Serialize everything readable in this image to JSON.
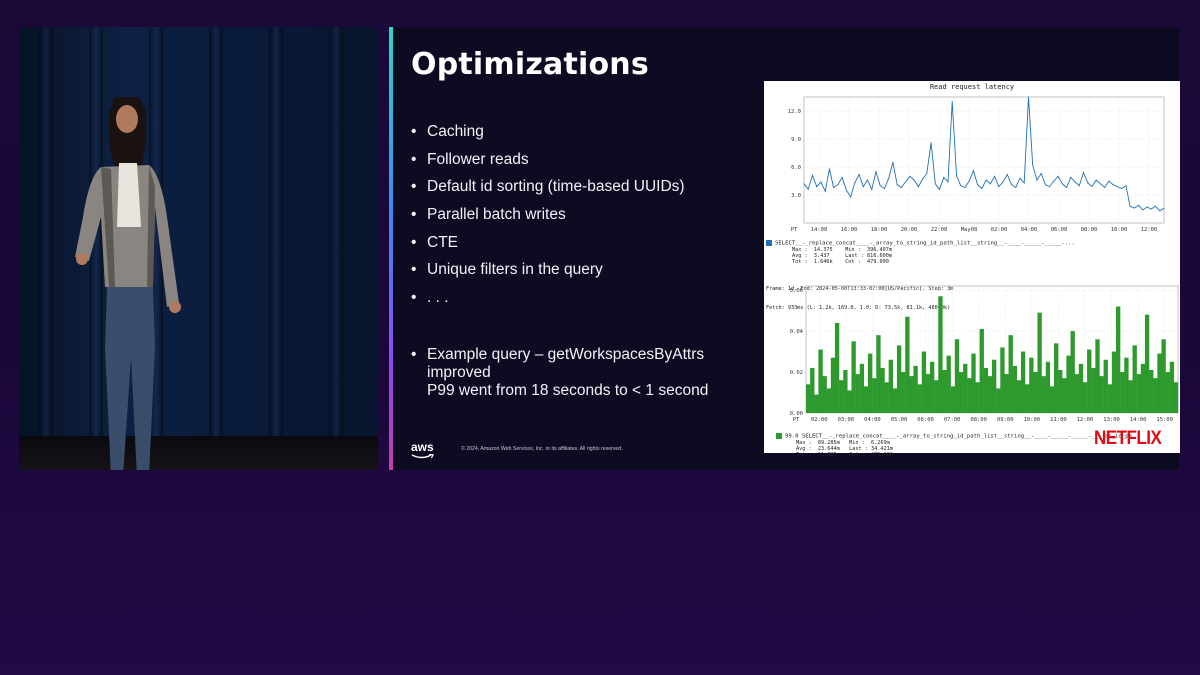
{
  "slide": {
    "title": "Optimizations",
    "bullets": [
      "Caching",
      "Follower reads",
      "Default id sorting (time-based UUIDs)",
      "Parallel batch writes",
      "CTE",
      "Unique filters in the query",
      ". . ."
    ],
    "example": {
      "line1": "Example query – getWorkspacesByAttrs",
      "line2": "improved",
      "line3": "P99 went from 18 seconds to < 1 second"
    },
    "footer": {
      "aws_logo": "aws",
      "copyright": "© 2024, Amazon Web Services, Inc. or its affiliates. All rights reserved."
    },
    "netflix_logo": "NETFLIX"
  },
  "chart_data": [
    {
      "type": "line",
      "title": "Read request latency",
      "x_ticks": [
        "PT",
        "14:00",
        "16:00",
        "18:00",
        "20:00",
        "22:00",
        "May08",
        "02:00",
        "04:00",
        "06:00",
        "08:00",
        "10:00",
        "12:00"
      ],
      "y_ticks": [
        "3.0",
        "6.0",
        "9.0",
        "12.0"
      ],
      "ylim": [
        0,
        13.5
      ],
      "grid": true,
      "color": "#1f6fb5",
      "series": [
        {
          "name": "SELECT__-_replace_concat____-_array_to_string_id_path_list__string__-____-_____-_____-...",
          "values": [
            4.2,
            3.6,
            5.1,
            3.9,
            4.4,
            3.4,
            5.8,
            3.8,
            4.1,
            4.9,
            3.5,
            2.8,
            4.3,
            5.2,
            3.9,
            4.6,
            3.6,
            5.5,
            4.0,
            3.7,
            4.8,
            6.5,
            4.1,
            3.8,
            4.4,
            5.0,
            4.6,
            3.9,
            4.7,
            5.3,
            8.6,
            4.2,
            3.6,
            4.9,
            4.4,
            13.0,
            5.1,
            4.0,
            3.8,
            4.5,
            5.6,
            4.1,
            3.7,
            4.6,
            4.2,
            5.0,
            3.9,
            4.4,
            5.2,
            4.1,
            3.8,
            4.8,
            4.3,
            13.5,
            6.2,
            4.6,
            5.3,
            4.1,
            3.9,
            4.5,
            5.0,
            4.2,
            3.8,
            4.9,
            4.4,
            4.0,
            5.4,
            4.3,
            3.9,
            4.6,
            4.2,
            3.8,
            4.5,
            4.1,
            3.9,
            3.7,
            4.0,
            1.8,
            1.6,
            1.9,
            1.4,
            1.7,
            1.5,
            1.8,
            1.3,
            1.6
          ],
          "stats": {
            "Max": "14.375",
            "Min": "396.407m",
            "Avg": "3.437",
            "Last": "816.600m",
            "Tot": "1.646k",
            "Cnt": "479.000"
          }
        }
      ],
      "frame_info": "Frame: 1d, End: 2024-05-08T13:33-07:00[US/Pacific], Step: 3m",
      "fetch_info": "Fetch: 933ms (L: 1.2k, 169.0, 1.0; D: 73.5k, 81.1k, 480.0k)"
    },
    {
      "type": "area",
      "x_ticks": [
        "PT",
        "02:00",
        "03:00",
        "04:00",
        "05:00",
        "06:00",
        "07:00",
        "08:00",
        "09:00",
        "10:00",
        "11:00",
        "12:00",
        "13:00",
        "14:00",
        "15:00"
      ],
      "y_ticks": [
        "0.00",
        "0.02",
        "0.04",
        "0.06"
      ],
      "ylim": [
        0,
        0.062
      ],
      "grid": true,
      "color": "#2e9a2e",
      "series": [
        {
          "name": "99.0 SELECT__-_replace_concat____-_array_to_string_id_path_list__string__-____-_____-_____-____as_id_pa",
          "values": [
            0.014,
            0.022,
            0.009,
            0.031,
            0.018,
            0.012,
            0.027,
            0.044,
            0.016,
            0.021,
            0.011,
            0.035,
            0.019,
            0.024,
            0.013,
            0.029,
            0.017,
            0.038,
            0.022,
            0.015,
            0.026,
            0.012,
            0.033,
            0.02,
            0.047,
            0.018,
            0.023,
            0.014,
            0.03,
            0.019,
            0.025,
            0.016,
            0.057,
            0.021,
            0.028,
            0.013,
            0.036,
            0.02,
            0.024,
            0.017,
            0.029,
            0.015,
            0.041,
            0.022,
            0.018,
            0.026,
            0.012,
            0.032,
            0.019,
            0.038,
            0.023,
            0.016,
            0.03,
            0.014,
            0.027,
            0.02,
            0.049,
            0.018,
            0.025,
            0.013,
            0.034,
            0.021,
            0.017,
            0.028,
            0.04,
            0.019,
            0.024,
            0.015,
            0.031,
            0.022,
            0.036,
            0.018,
            0.026,
            0.014,
            0.03,
            0.052,
            0.02,
            0.027,
            0.016,
            0.033,
            0.019,
            0.024,
            0.048,
            0.021,
            0.017,
            0.029,
            0.036,
            0.02,
            0.025,
            0.015
          ],
          "stats": {
            "Max": "89.285m",
            "Min": "6.269m",
            "Avg": "23.644m",
            "Last": "34.421m",
            "Tot": "11.325",
            "Cnt": "479.000"
          }
        }
      ],
      "frame_info": "Frame: 1d, End: 2024-10-15T01:57-07:00[US/Pacific], Step: 3m",
      "fetch_info": "Fetch: 20ms (L: 7.7k, 442.0, 1.0; D: 459.0k, 212.2k, 480.0k)"
    }
  ]
}
